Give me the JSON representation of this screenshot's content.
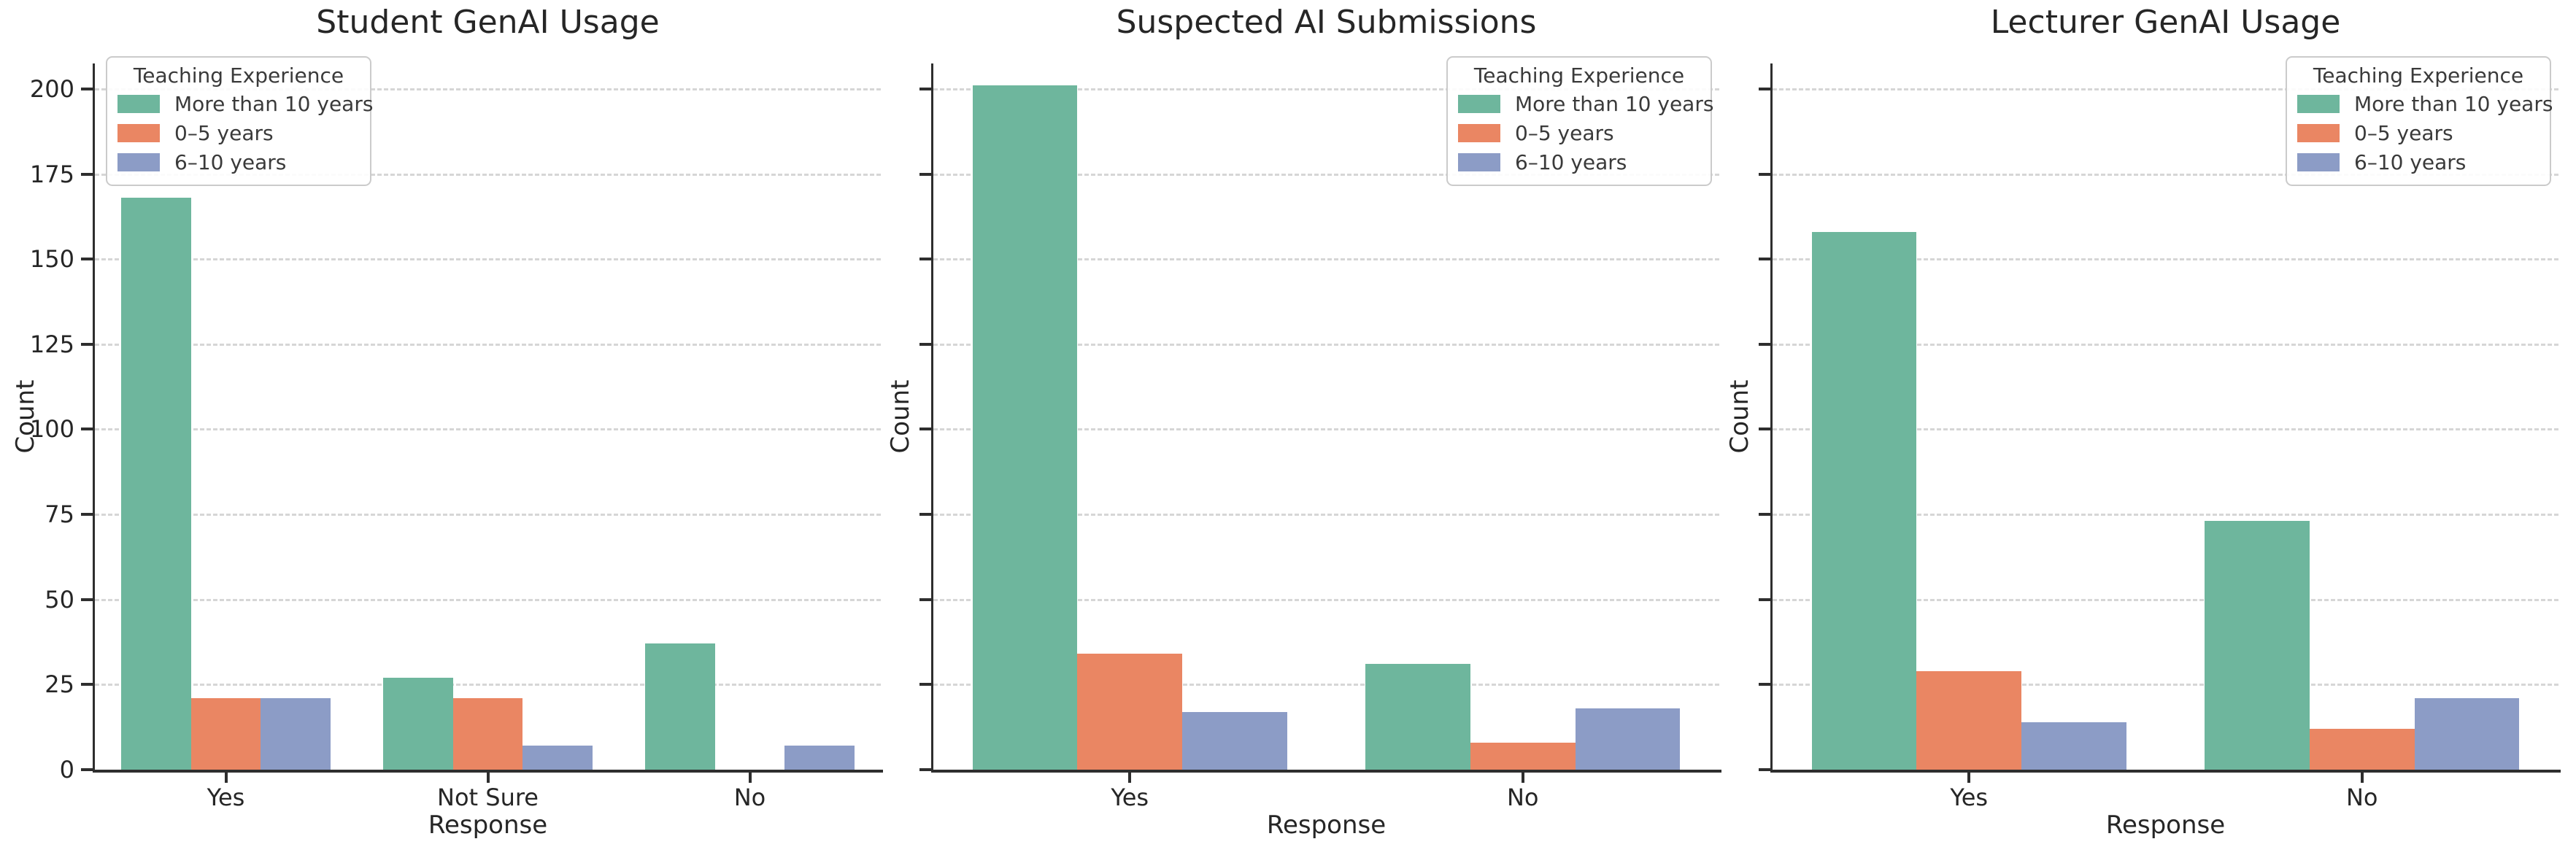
{
  "figure_title": "",
  "legend": {
    "title": "Teaching Experience",
    "entries": [
      {
        "label": "More than 10 years",
        "color": "#6eb69d"
      },
      {
        "label": "0–5 years",
        "color": "#ea8663"
      },
      {
        "label": "6–10 years",
        "color": "#8c9cc6"
      }
    ]
  },
  "chart_data": [
    {
      "type": "bar",
      "title": "Student GenAI Usage",
      "xlabel": "Response",
      "ylabel": "Count",
      "categories": [
        "Yes",
        "Not Sure",
        "No"
      ],
      "series": [
        {
          "name": "More than 10 years",
          "values": [
            168,
            27,
            37
          ]
        },
        {
          "name": "0–5 years",
          "values": [
            21,
            21,
            0
          ]
        },
        {
          "name": "6–10 years",
          "values": [
            21,
            7,
            7
          ]
        }
      ],
      "ylim": [
        0,
        207.5
      ],
      "yticks": [
        0,
        25,
        50,
        75,
        100,
        125,
        150,
        175,
        200
      ],
      "ytick_labels_visible": true,
      "legend_position": "upper-left",
      "grid": "dashed-horizontal"
    },
    {
      "type": "bar",
      "title": "Suspected AI Submissions",
      "xlabel": "Response",
      "ylabel": "Count",
      "categories": [
        "Yes",
        "No"
      ],
      "series": [
        {
          "name": "More than 10 years",
          "values": [
            201,
            31
          ]
        },
        {
          "name": "0–5 years",
          "values": [
            34,
            8
          ]
        },
        {
          "name": "6–10 years",
          "values": [
            17,
            18
          ]
        }
      ],
      "ylim": [
        0,
        207.5
      ],
      "yticks": [
        0,
        25,
        50,
        75,
        100,
        125,
        150,
        175,
        200
      ],
      "ytick_labels_visible": false,
      "legend_position": "upper-right",
      "grid": "dashed-horizontal"
    },
    {
      "type": "bar",
      "title": "Lecturer GenAI Usage",
      "xlabel": "Response",
      "ylabel": "Count",
      "categories": [
        "Yes",
        "No"
      ],
      "series": [
        {
          "name": "More than 10 years",
          "values": [
            158,
            73
          ]
        },
        {
          "name": "0–5 years",
          "values": [
            29,
            12
          ]
        },
        {
          "name": "6–10 years",
          "values": [
            14,
            21
          ]
        }
      ],
      "ylim": [
        0,
        207.5
      ],
      "yticks": [
        0,
        25,
        50,
        75,
        100,
        125,
        150,
        175,
        200
      ],
      "ytick_labels_visible": false,
      "legend_position": "upper-right",
      "grid": "dashed-horizontal"
    }
  ]
}
